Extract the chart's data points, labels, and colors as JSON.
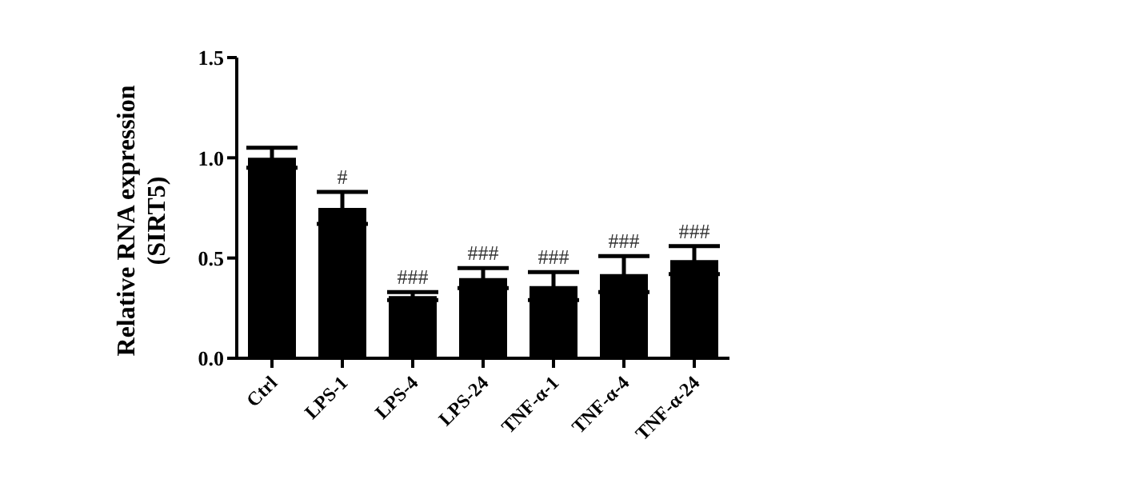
{
  "chart_data": {
    "type": "bar",
    "ylabel": "Relative RNA expression\n(SIRT5)",
    "categories": [
      "Ctrl",
      "LPS-1",
      "LPS-4",
      "LPS-24",
      "TNF-α-1",
      "TNF-α-4",
      "TNF-α-24"
    ],
    "values": [
      1.0,
      0.75,
      0.31,
      0.4,
      0.36,
      0.42,
      0.49
    ],
    "errors": [
      0.05,
      0.08,
      0.02,
      0.05,
      0.07,
      0.09,
      0.07
    ],
    "color": "#000000",
    "ylim": [
      0,
      1.5
    ],
    "yticks": [
      {
        "value": 0,
        "label": "0.0"
      },
      {
        "value": 0.5,
        "label": "0.5"
      },
      {
        "value": 1,
        "label": "1.0"
      },
      {
        "value": 1.5,
        "label": "1.5"
      }
    ],
    "grid": false,
    "legend": false,
    "annotations": [
      {
        "text": "#",
        "x": "LPS-1",
        "y": 0.83
      },
      {
        "text": "###",
        "x": "LPS-4",
        "y": 0.33
      },
      {
        "text": "###",
        "x": "LPS-24",
        "y": 0.45
      },
      {
        "text": "###",
        "x": "TNF-α-1",
        "y": 0.43
      },
      {
        "text": "###",
        "x": "TNF-α-4",
        "y": 0.51
      },
      {
        "text": "###",
        "x": "TNF-α-24",
        "y": 0.56
      }
    ]
  }
}
